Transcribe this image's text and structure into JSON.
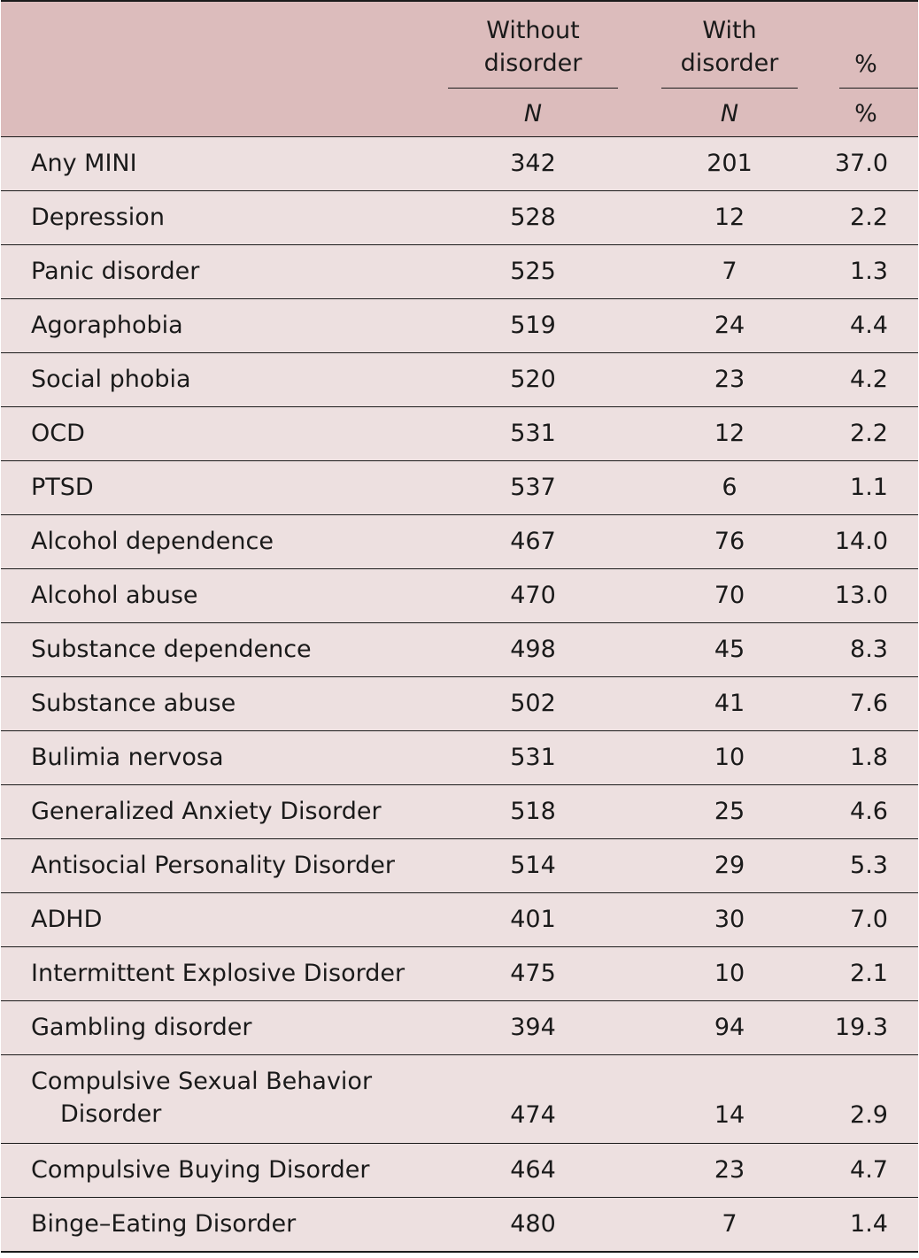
{
  "table": {
    "headers": {
      "without": "Without disorder",
      "without_line1": "Without",
      "without_line2": "disorder",
      "with_line1": "With",
      "with_line2": "disorder",
      "pct": "%",
      "sub_n1": "N",
      "sub_n2": "N",
      "sub_pct": "%"
    },
    "rows": [
      {
        "label": "Any MINI",
        "without": "342",
        "with": "201",
        "pct": "37.0"
      },
      {
        "label": "Depression",
        "without": "528",
        "with": "12",
        "pct": "2.2"
      },
      {
        "label": "Panic disorder",
        "without": "525",
        "with": "7",
        "pct": "1.3"
      },
      {
        "label": "Agoraphobia",
        "without": "519",
        "with": "24",
        "pct": "4.4"
      },
      {
        "label": "Social phobia",
        "without": "520",
        "with": "23",
        "pct": "4.2"
      },
      {
        "label": "OCD",
        "without": "531",
        "with": "12",
        "pct": "2.2"
      },
      {
        "label": "PTSD",
        "without": "537",
        "with": "6",
        "pct": "1.1"
      },
      {
        "label": "Alcohol dependence",
        "without": "467",
        "with": "76",
        "pct": "14.0"
      },
      {
        "label": "Alcohol abuse",
        "without": "470",
        "with": "70",
        "pct": "13.0"
      },
      {
        "label": "Substance dependence",
        "without": "498",
        "with": "45",
        "pct": "8.3"
      },
      {
        "label": "Substance abuse",
        "without": "502",
        "with": "41",
        "pct": "7.6"
      },
      {
        "label": "Bulimia nervosa",
        "without": "531",
        "with": "10",
        "pct": "1.8"
      },
      {
        "label": "Generalized Anxiety Disorder",
        "without": "518",
        "with": "25",
        "pct": "4.6"
      },
      {
        "label": "Antisocial Personality Disorder",
        "without": "514",
        "with": "29",
        "pct": "5.3"
      },
      {
        "label": "ADHD",
        "without": "401",
        "with": "30",
        "pct": "7.0"
      },
      {
        "label": "Intermittent Explosive Disorder",
        "without": "475",
        "with": "10",
        "pct": "2.1"
      },
      {
        "label": "Gambling disorder",
        "without": "394",
        "with": "94",
        "pct": "19.3"
      },
      {
        "label_line1": "Compulsive Sexual Behavior",
        "label_line2": "Disorder",
        "without": "474",
        "with": "14",
        "pct": "2.9"
      },
      {
        "label": "Compulsive Buying Disorder",
        "without": "464",
        "with": "23",
        "pct": "4.7"
      },
      {
        "label": "Binge–Eating Disorder",
        "without": "480",
        "with": "7",
        "pct": "1.4"
      }
    ]
  }
}
